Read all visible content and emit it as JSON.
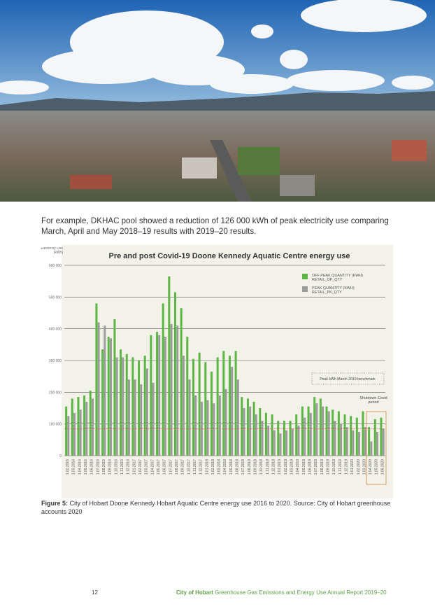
{
  "paragraph": "For example, DKHAC pool showed a reduction of 126 000 kWh of peak electricity use comparing March, April and May 2018–19 results with 2019–20 results.",
  "chart_data": {
    "type": "bar",
    "title": "Pre and post Covid-19 Doone Kennedy Aquatic Centre energy use",
    "y_label": "Electricity Use (kWh)",
    "categories": [
      "1.02.2016",
      "1.03.2016",
      "1.04.2016",
      "1.05.2016",
      "1.06.2016",
      "1.07.2016",
      "1.08.2016",
      "1.09.2016",
      "1.10.2016",
      "1.11.2016",
      "1.12.2016",
      "1.01.2017",
      "1.02.2017",
      "1.03.2017",
      "1.04.2017",
      "1.05.2017",
      "1.06.2017",
      "1.07.2017",
      "1.08.2017",
      "1.09.2017",
      "1.10.2017",
      "1.11.2017",
      "1.12.2017",
      "1.01.2018",
      "1.02.2018",
      "1.03.2018",
      "1.04.2018",
      "1.05.2018",
      "1.06.2018",
      "1.07.2018",
      "1.08.2018",
      "1.09.2018",
      "1.10.2018",
      "1.11.2018",
      "1.12.2018",
      "1.01.2019",
      "1.02.2019",
      "1.03.2019",
      "1.04.2019",
      "1.05.2019",
      "1.06.2019",
      "1.07.2019",
      "1.08.2019",
      "1.09.2019",
      "1.10.2019",
      "1.11.2019",
      "1.12.2019",
      "1.01.2020",
      "1.02.2020",
      "1.03.2020",
      "1.04.2020",
      "1.05.2020",
      "1.06.2020"
    ],
    "series": [
      {
        "name": "OFF PEAK QUANTITY (KWH) RETAIL_OP_QTY",
        "color": "#5cb646",
        "values": [
          155000,
          180000,
          185000,
          190000,
          205000,
          480000,
          335000,
          375000,
          430000,
          335000,
          320000,
          310000,
          300000,
          315000,
          380000,
          390000,
          480000,
          565000,
          515000,
          465000,
          375000,
          305000,
          325000,
          295000,
          265000,
          310000,
          330000,
          315000,
          330000,
          185000,
          180000,
          170000,
          150000,
          135000,
          130000,
          110000,
          110000,
          110000,
          130000,
          155000,
          155000,
          185000,
          180000,
          155000,
          145000,
          140000,
          130000,
          125000,
          120000,
          140000,
          90000,
          115000,
          120000
        ]
      },
      {
        "name": "PEAK QUANTITY (KWH) RETAIL_PK_QTY",
        "color": "#9b9b9b",
        "values": [
          125000,
          135000,
          145000,
          170000,
          180000,
          420000,
          410000,
          370000,
          310000,
          310000,
          240000,
          240000,
          225000,
          275000,
          230000,
          380000,
          375000,
          415000,
          410000,
          315000,
          240000,
          190000,
          170000,
          175000,
          165000,
          190000,
          210000,
          280000,
          240000,
          150000,
          155000,
          130000,
          110000,
          95000,
          80000,
          70000,
          80000,
          85000,
          95000,
          120000,
          135000,
          165000,
          155000,
          140000,
          110000,
          100000,
          90000,
          80000,
          75000,
          90000,
          45000,
          75000,
          85000
        ]
      }
    ],
    "ylim": [
      0,
      600000
    ],
    "yticks": [
      0,
      {
        "value": 100000,
        "label": "100 000"
      },
      {
        "value": 200000,
        "label": "200 000"
      },
      {
        "value": 300000,
        "label": "300 000"
      },
      {
        "value": 400000,
        "label": "400 000"
      },
      {
        "value": 500000,
        "label": "500 000"
      },
      {
        "value": 600000,
        "label": "600 000"
      }
    ],
    "grid": true,
    "annotations": [
      "Peak kWh March 2019 benchmark",
      "Shutdown Covid period"
    ]
  },
  "caption": {
    "label": "Figure 5:",
    "text": " City of Hobart Doone Kennedy Hobart Aquatic Centre energy use 2016 to 2020. Source: City of Hobart greenhouse accounts 2020"
  },
  "footer": {
    "page": "12",
    "org": "City of Hobart",
    "title": " Greenhouse Gas Emissions and Energy Use Annual Report 2019–20"
  }
}
